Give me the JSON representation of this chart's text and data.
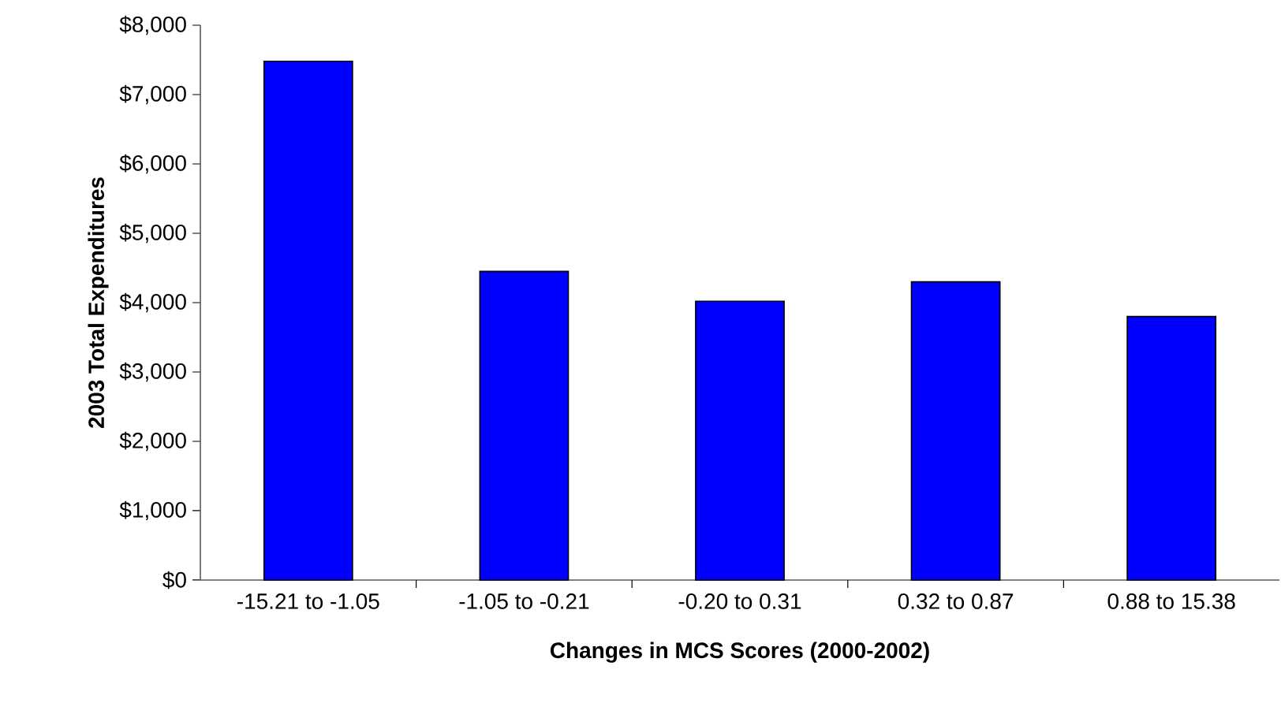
{
  "chart_data": {
    "type": "bar",
    "xlabel": "Changes in MCS Scores (2000-2002)",
    "ylabel": "2003 Total Expenditures",
    "categories": [
      "-15.21 to -1.05",
      "-1.05 to -0.21",
      "-0.20 to 0.31",
      "0.32 to 0.87",
      "0.88 to 15.38"
    ],
    "values": [
      7480,
      4450,
      4020,
      4300,
      3800
    ],
    "color": "#0000ff",
    "ylim": [
      0,
      8000
    ],
    "yticks": [
      {
        "value": 0,
        "label": "$0"
      },
      {
        "value": 1000,
        "label": "$1,000"
      },
      {
        "value": 2000,
        "label": "$2,000"
      },
      {
        "value": 3000,
        "label": "$3,000"
      },
      {
        "value": 4000,
        "label": "$4,000"
      },
      {
        "value": 5000,
        "label": "$5,000"
      },
      {
        "value": 6000,
        "label": "$6,000"
      },
      {
        "value": 7000,
        "label": "$7,000"
      },
      {
        "value": 8000,
        "label": "$8,000"
      }
    ],
    "grid": false
  }
}
